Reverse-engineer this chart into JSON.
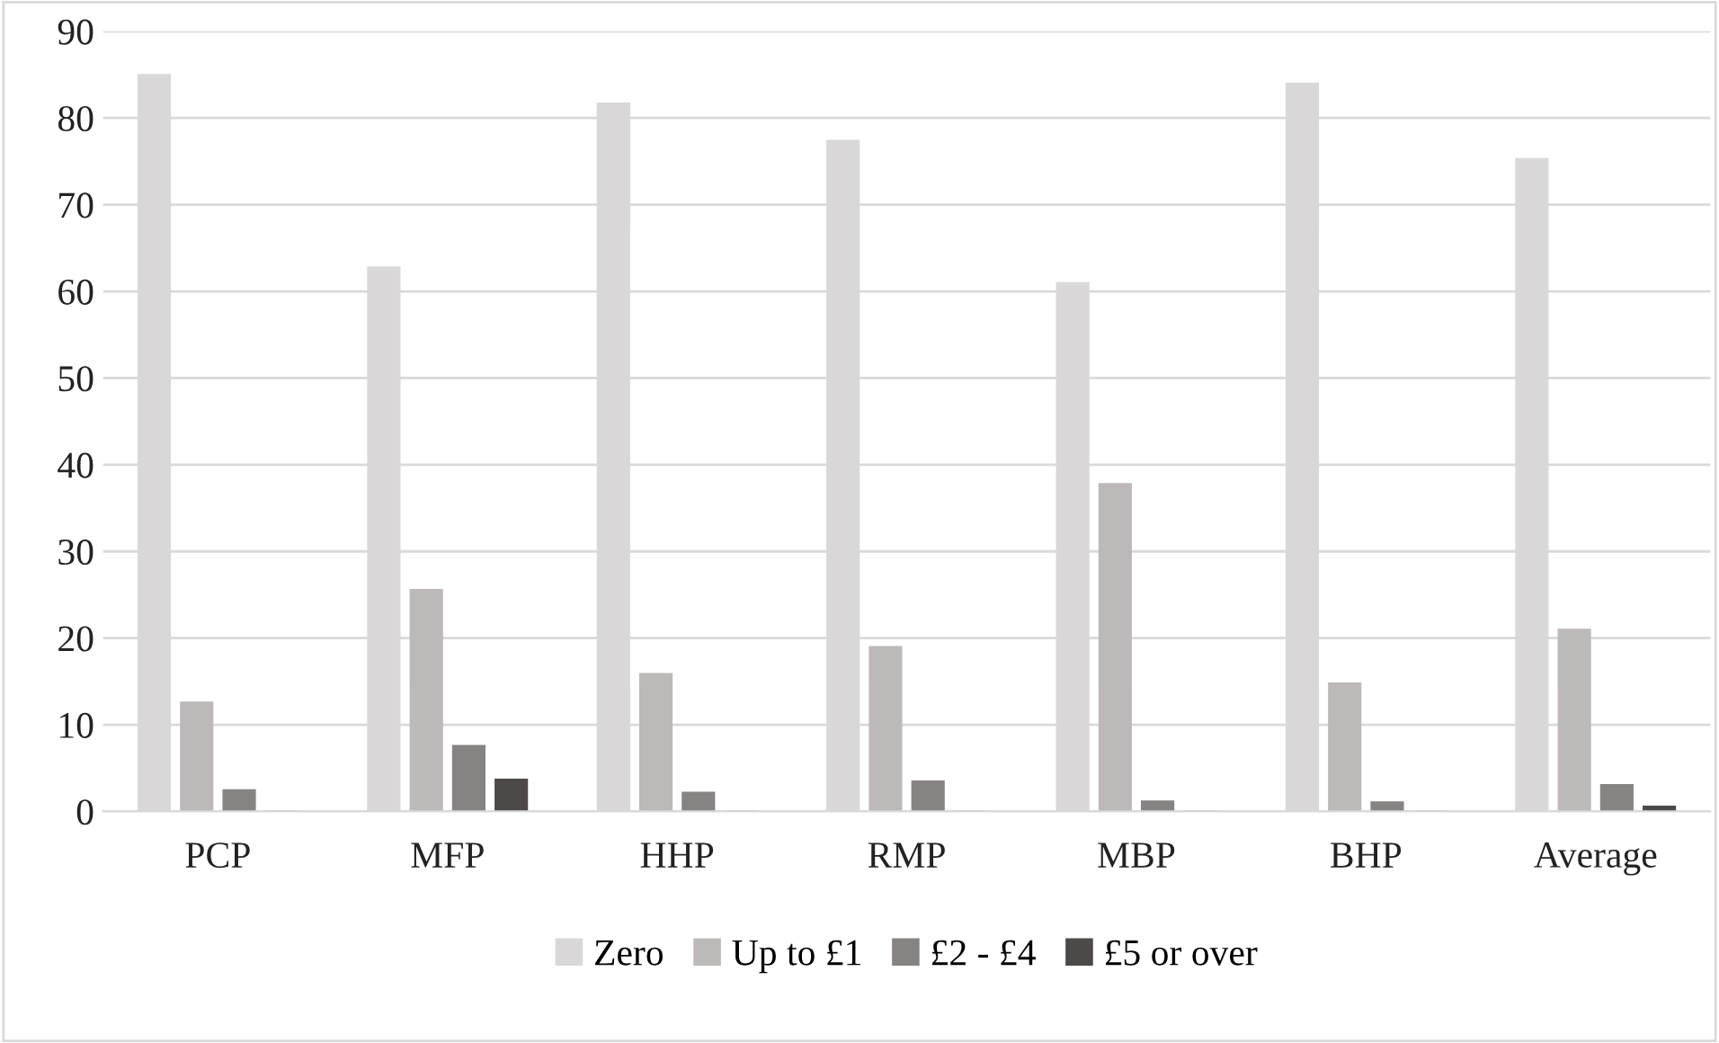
{
  "chart_data": {
    "type": "bar",
    "categories": [
      "PCP",
      "MFP",
      "HHP",
      "RMP",
      "MBP",
      "BHP",
      "Average"
    ],
    "series": [
      {
        "name": "Zero",
        "color": "#d9d7d8",
        "values": [
          85,
          62.8,
          81.7,
          77.4,
          61,
          84,
          75.3
        ]
      },
      {
        "name": "Up to £1",
        "color": "#bcb9b8",
        "values": [
          12.6,
          25.6,
          15.9,
          19,
          37.8,
          14.8,
          21
        ]
      },
      {
        "name": "£2 - £4",
        "color": "#878382",
        "values": [
          2.5,
          7.6,
          2.2,
          3.5,
          1.2,
          1.1,
          3.1
        ]
      },
      {
        "name": "£5 or over",
        "color": "#4d4948",
        "values": [
          0,
          3.7,
          0,
          0,
          0,
          0,
          0.6
        ]
      }
    ],
    "ylim": [
      0,
      90
    ],
    "yticks": [
      0,
      10,
      20,
      30,
      40,
      50,
      60,
      70,
      80,
      90
    ],
    "grid": "y",
    "legend": "bottom"
  }
}
